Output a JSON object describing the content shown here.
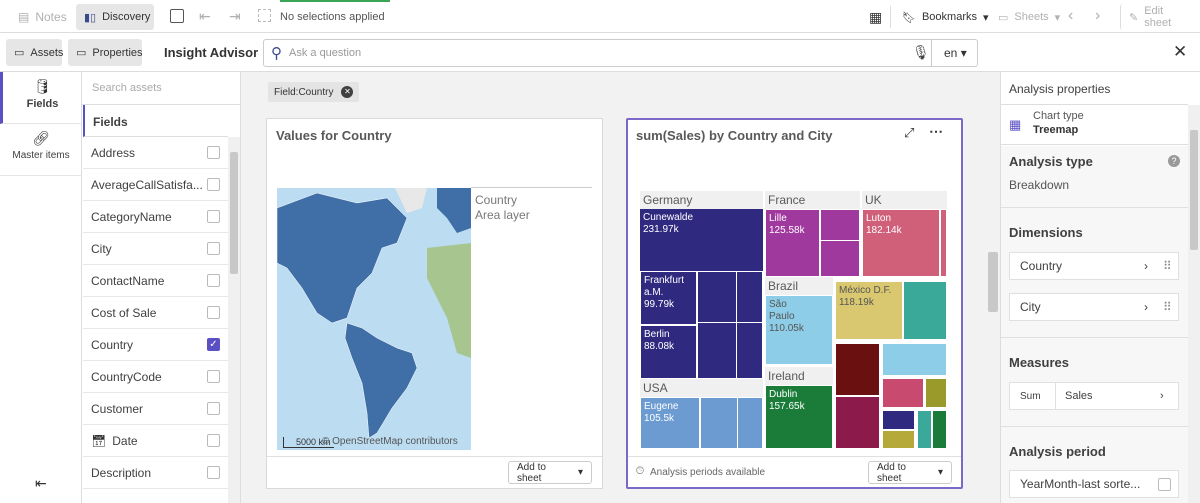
{
  "toolbar": {
    "notes": "Notes",
    "discovery": "Discovery",
    "selections": "No selections applied",
    "bookmarks": "Bookmarks",
    "sheets": "Sheets",
    "edit": "Edit sheet"
  },
  "subbar": {
    "assets": "Assets",
    "properties": "Properties",
    "title": "Insight Advisor",
    "search_placeholder": "Ask a question",
    "language": "en"
  },
  "nav": {
    "fields": "Fields",
    "master_items": "Master items"
  },
  "fields_panel": {
    "search_placeholder": "Search assets",
    "header": "Fields",
    "items": [
      {
        "name": "Address",
        "checked": false
      },
      {
        "name": "AverageCallSatisfa...",
        "checked": false
      },
      {
        "name": "CategoryName",
        "checked": false
      },
      {
        "name": "City",
        "checked": false
      },
      {
        "name": "ContactName",
        "checked": false
      },
      {
        "name": "Cost of Sale",
        "checked": false
      },
      {
        "name": "Country",
        "checked": true
      },
      {
        "name": "CountryCode",
        "checked": false
      },
      {
        "name": "Customer",
        "checked": false
      },
      {
        "name": "Date",
        "checked": false,
        "icon": "calendar"
      },
      {
        "name": "Description",
        "checked": false
      }
    ]
  },
  "filter_chip": "Field:Country",
  "card_map": {
    "title": "Values for Country",
    "legend_title": "Country",
    "legend_subtitle": "Area layer",
    "scale": "5000 km",
    "attribution": "© OpenStreetMap contributors",
    "button": "Add to sheet"
  },
  "card_treemap": {
    "title": "sum(Sales) by Country and City",
    "groups": {
      "germany": "Germany",
      "france": "France",
      "uk": "UK",
      "brazil": "Brazil",
      "ireland": "Ireland",
      "usa": "USA"
    },
    "cells": {
      "cunewalde": {
        "name": "Cunewalde",
        "value": "231.97k"
      },
      "frankfurt": {
        "name": "Frankfurt a.M.",
        "value": "99.79k"
      },
      "berlin": {
        "name": "Berlin",
        "value": "88.08k"
      },
      "lille": {
        "name": "Lille",
        "value": "125.58k"
      },
      "luton": {
        "name": "Luton",
        "value": "182.14k"
      },
      "saopaulo": {
        "name": "São Paulo",
        "value": "110.05k"
      },
      "mexico": {
        "name": "México D.F.",
        "value": "118.19k"
      },
      "dublin": {
        "name": "Dublin",
        "value": "157.65k"
      },
      "eugene": {
        "name": "Eugene",
        "value": "105.5k"
      }
    },
    "footer_note": "Analysis periods available",
    "button": "Add to sheet"
  },
  "properties": {
    "header": "Analysis properties",
    "chart_type_label": "Chart type",
    "chart_type": "Treemap",
    "analysis_type_label": "Analysis type",
    "analysis_type": "Breakdown",
    "dimensions_label": "Dimensions",
    "dimensions": [
      "Country",
      "City"
    ],
    "measures_label": "Measures",
    "measure_agg": "Sum",
    "measure_field": "Sales",
    "period_label": "Analysis period",
    "period": "YearMonth-last sorte..."
  }
}
